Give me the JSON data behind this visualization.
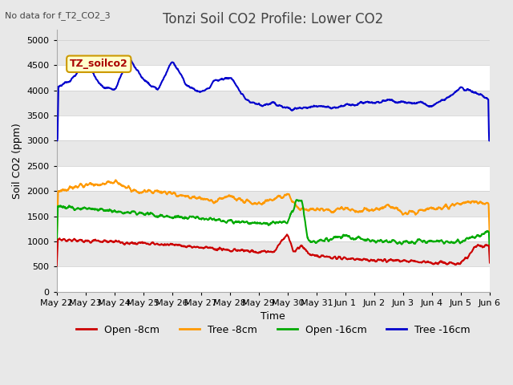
{
  "title": "Tonzi Soil CO2 Profile: Lower CO2",
  "subtitle": "No data for f_T2_CO2_3",
  "ylabel": "Soil CO2 (ppm)",
  "xlabel": "Time",
  "legend_label": "TZ_soilco2",
  "ylim": [
    0,
    5200
  ],
  "yticks": [
    0,
    500,
    1000,
    1500,
    2000,
    2500,
    3000,
    3500,
    4000,
    4500,
    5000
  ],
  "series": {
    "open_8cm": {
      "label": "Open -8cm",
      "color": "#cc0000"
    },
    "tree_8cm": {
      "label": "Tree -8cm",
      "color": "#ff9900"
    },
    "open_16cm": {
      "label": "Open -16cm",
      "color": "#00aa00"
    },
    "tree_16cm": {
      "label": "Tree -16cm",
      "color": "#0000cc"
    }
  },
  "bg_color": "#e8e8e8",
  "grid_color": "#ffffff",
  "title_fontsize": 12,
  "axis_fontsize": 9,
  "tick_fontsize": 8,
  "legend_box_color": "#ffffcc",
  "legend_box_edge": "#cc9900",
  "day_labels": [
    "May 22",
    "May 23",
    "May 24",
    "May 25",
    "May 26",
    "May 27",
    "May 28",
    "May 29",
    "May 30",
    "May 31",
    "Jun 1",
    "Jun 2",
    "Jun 3",
    "Jun 4",
    "Jun 5",
    "Jun 6"
  ]
}
